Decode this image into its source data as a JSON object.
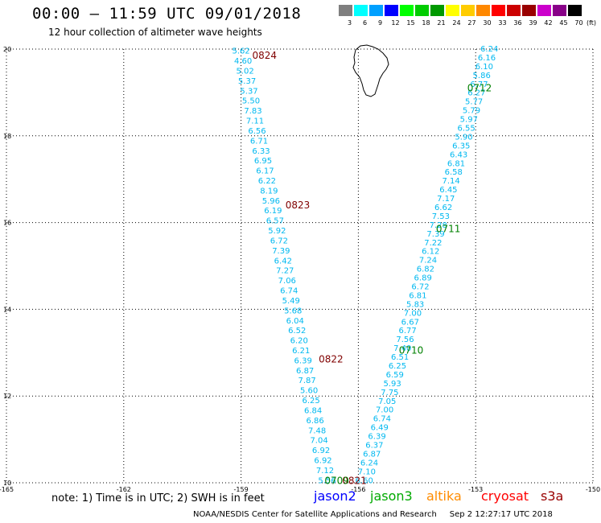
{
  "header": {
    "title": "00:00 – 11:59 UTC 09/01/2018",
    "subtitle": "12 hour collection of altimeter wave heights"
  },
  "legend": {
    "unit": "(ft)",
    "bins": [
      {
        "label": "3",
        "color": "#7f7f7f"
      },
      {
        "label": "6",
        "color": "#00ffff"
      },
      {
        "label": "9",
        "color": "#00a0ff"
      },
      {
        "label": "12",
        "color": "#0000ff"
      },
      {
        "label": "15",
        "color": "#00ff00"
      },
      {
        "label": "18",
        "color": "#00cc00"
      },
      {
        "label": "21",
        "color": "#009900"
      },
      {
        "label": "24",
        "color": "#ffff00"
      },
      {
        "label": "27",
        "color": "#ffcc00"
      },
      {
        "label": "30",
        "color": "#ff8800"
      },
      {
        "label": "33",
        "color": "#ff0000"
      },
      {
        "label": "36",
        "color": "#cc0000"
      },
      {
        "label": "39",
        "color": "#990000"
      },
      {
        "label": "42",
        "color": "#cc00cc"
      },
      {
        "label": "45",
        "color": "#880088"
      },
      {
        "label": "70",
        "color": "#000000"
      }
    ]
  },
  "chart_data": {
    "type": "scatter",
    "xlim": [
      -165,
      -150
    ],
    "ylim": [
      10,
      20
    ],
    "xticks": [
      "-165",
      "-162",
      "-159",
      "-156",
      "-153",
      "-150"
    ],
    "yticks": [
      "10",
      "12",
      "14",
      "16",
      "18",
      "20"
    ],
    "grid": true,
    "series": [
      {
        "name": "cryosat",
        "color": "#00b8f0",
        "lon_start": -159.0,
        "lat_start": 19.95,
        "lon_end": -156.8,
        "lat_end": 10.05,
        "values": [
          "5.62",
          "4.60",
          "5.02",
          "5.37",
          "5.37",
          "5.50",
          "7.83",
          "7.11",
          "6.56",
          "6.71",
          "6.33",
          "6.95",
          "6.17",
          "6.22",
          "8.19",
          "5.96",
          "6.19",
          "6.57",
          "5.92",
          "6.72",
          "7.39",
          "6.42",
          "7.27",
          "7.06",
          "6.74",
          "5.49",
          "5.68",
          "6.04",
          "6.52",
          "6.20",
          "6.21",
          "6.39",
          "6.87",
          "7.87",
          "5.60",
          "6.25",
          "6.84",
          "6.86",
          "7.48",
          "7.04",
          "6.92",
          "6.92",
          "7.12",
          "5.56"
        ]
      },
      {
        "name": "jason3",
        "color": "#00b8f0",
        "lon_start": -152.65,
        "lat_start": 20.0,
        "lon_end": -155.85,
        "lat_end": 10.05,
        "values": [
          "6.24",
          "6.16",
          "6.10",
          "5.86",
          "6.77",
          "6.27",
          "5.77",
          "5.79",
          "5.97",
          "6.55",
          "5.90",
          "6.35",
          "6.43",
          "6.81",
          "6.58",
          "7.14",
          "6.45",
          "7.17",
          "6.62",
          "7.53",
          "7.28",
          "7.39",
          "7.22",
          "6.12",
          "7.24",
          "6.82",
          "6.89",
          "6.72",
          "6.81",
          "5.83",
          "7.00",
          "6.67",
          "6.77",
          "7.56",
          "7.40",
          "6.51",
          "6.25",
          "6.59",
          "5.93",
          "7.75",
          "7.05",
          "7.00",
          "6.74",
          "6.49",
          "6.39",
          "6.37",
          "6.87",
          "6.24",
          "7.10",
          "6.60"
        ]
      }
    ],
    "pass_labels": [
      {
        "text": "0824",
        "lon": -158.4,
        "lat": 19.85,
        "color": "#800000"
      },
      {
        "text": "0823",
        "lon": -157.55,
        "lat": 16.4,
        "color": "#800000"
      },
      {
        "text": "0822",
        "lon": -156.7,
        "lat": 12.85,
        "color": "#800000"
      },
      {
        "text": "0821",
        "lon": -156.1,
        "lat": 10.05,
        "color": "#800000"
      },
      {
        "text": "0712",
        "lon": -152.9,
        "lat": 19.1,
        "color": "#008000"
      },
      {
        "text": "0711",
        "lon": -153.7,
        "lat": 15.85,
        "color": "#008000"
      },
      {
        "text": "0710",
        "lon": -154.65,
        "lat": 13.05,
        "color": "#008000"
      },
      {
        "text": "0709",
        "lon": -156.55,
        "lat": 10.05,
        "color": "#008000"
      }
    ]
  },
  "footer": {
    "note": "note: 1) Time is in UTC; 2) SWH is in feet",
    "satellites": [
      {
        "name": "jason2",
        "color": "#0000ff"
      },
      {
        "name": "jason3",
        "color": "#00aa00"
      },
      {
        "name": "altika",
        "color": "#ff8c00"
      },
      {
        "name": "cryosat",
        "color": "#ff0000"
      },
      {
        "name": "s3a",
        "color": "#990000"
      }
    ],
    "credit": "NOAA/NESDIS Center for Satellite Applications and Research",
    "timestamp": "Sep  2 12:27:17 UTC 2018"
  }
}
